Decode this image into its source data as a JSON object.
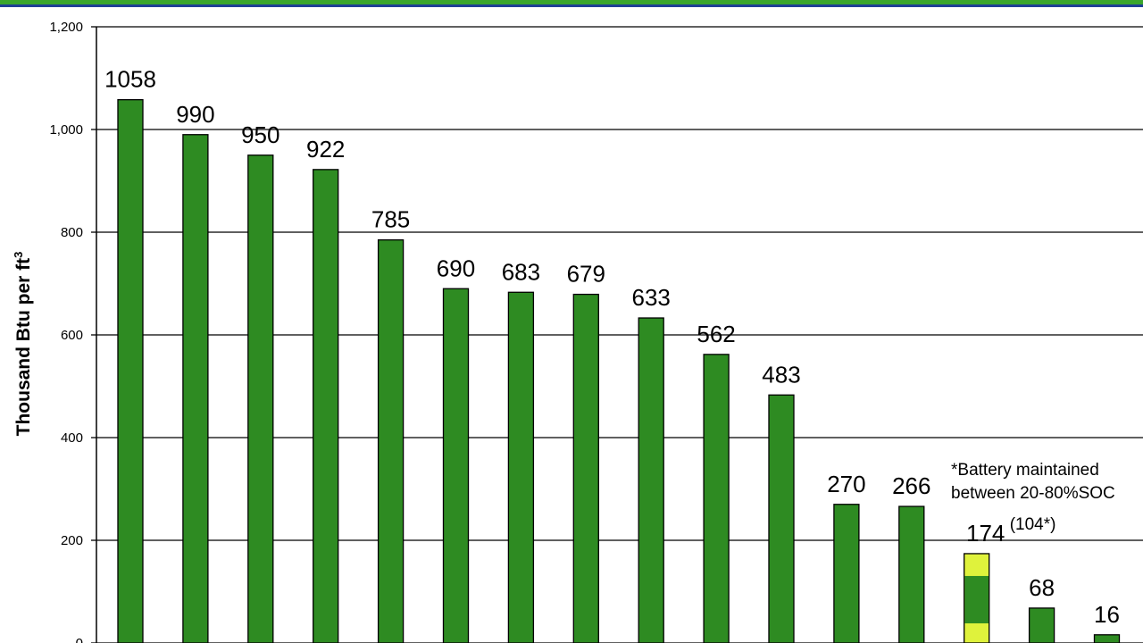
{
  "colors": {
    "bar": "#2e8b22",
    "bar_highlight": "#dff23c",
    "band_green": "#3aa62c",
    "band_blue": "#1f3f95",
    "grid": "#000000"
  },
  "chart_data": {
    "type": "bar",
    "title": "",
    "xlabel": "",
    "ylabel": "Thousand Btu per ft",
    "ylabel_superscript": "3",
    "ylim": [
      0,
      1200
    ],
    "yticks": [
      0,
      200,
      400,
      600,
      800,
      1000,
      1200
    ],
    "ytick_labels": [
      "0",
      "200",
      "400",
      "600",
      "800",
      "1,000",
      "1,200"
    ],
    "grid": true,
    "values": [
      1058,
      990,
      950,
      922,
      785,
      690,
      683,
      679,
      633,
      562,
      483,
      270,
      266,
      174,
      68,
      16
    ],
    "data_labels": [
      "1058",
      "990",
      "950",
      "922",
      "785",
      "690",
      "683",
      "679",
      "633",
      "562",
      "483",
      "270",
      "266",
      "174",
      "68",
      "16"
    ],
    "battery_bar": {
      "index": 13,
      "maintained_value": 104,
      "sublabel": "(104*)"
    },
    "annotation": [
      "*Battery maintained",
      "between 20-80%SOC"
    ]
  }
}
